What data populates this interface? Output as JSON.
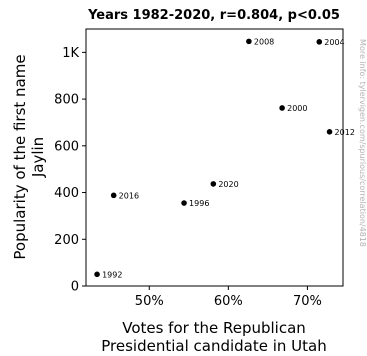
{
  "chart_data": {
    "type": "scatter",
    "title": "Years 1982-2020, r=0.804, p<0.05",
    "xlabel_lines": [
      "Votes for the Republican",
      "Presidential candidate in Utah"
    ],
    "ylabel_lines": [
      "Popularity of the first name",
      "Jaylin"
    ],
    "xlim": [
      42,
      74.5
    ],
    "ylim": [
      0,
      1100
    ],
    "x_ticks": [
      {
        "value": 50,
        "label": "50%"
      },
      {
        "value": 60,
        "label": "60%"
      },
      {
        "value": 70,
        "label": "70%"
      }
    ],
    "y_ticks": [
      {
        "value": 0,
        "label": "0"
      },
      {
        "value": 200,
        "label": "200"
      },
      {
        "value": 400,
        "label": "400"
      },
      {
        "value": 600,
        "label": "600"
      },
      {
        "value": 800,
        "label": "800"
      },
      {
        "value": 1000,
        "label": "1K"
      }
    ],
    "points": [
      {
        "label": "1992",
        "x": 43.4,
        "y": 50
      },
      {
        "label": "1996",
        "x": 54.4,
        "y": 355
      },
      {
        "label": "2000",
        "x": 66.8,
        "y": 762
      },
      {
        "label": "2004",
        "x": 71.5,
        "y": 1045
      },
      {
        "label": "2008",
        "x": 62.6,
        "y": 1047
      },
      {
        "label": "2012",
        "x": 72.8,
        "y": 660
      },
      {
        "label": "2016",
        "x": 45.5,
        "y": 388
      },
      {
        "label": "2020",
        "x": 58.1,
        "y": 437
      }
    ],
    "grid": false,
    "point_color": "#000000",
    "watermark": "More info: tylervigen.com/spurious/correlation/4818"
  }
}
